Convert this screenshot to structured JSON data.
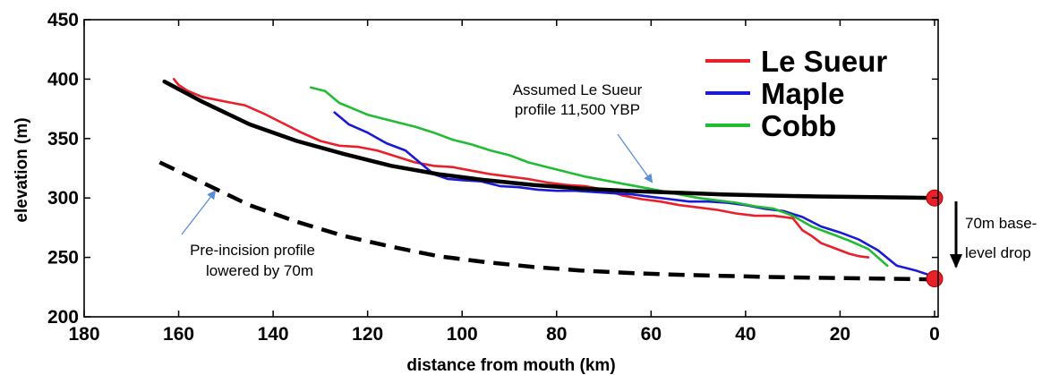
{
  "chart_data": {
    "type": "line",
    "xlabel": "distance from mouth (km)",
    "ylabel": "elevation (m)",
    "xlim": [
      180,
      0
    ],
    "ylim": [
      200,
      450
    ],
    "x_reversed": true,
    "xticks": [
      180,
      160,
      140,
      120,
      100,
      80,
      60,
      40,
      20,
      0
    ],
    "yticks": [
      200,
      250,
      300,
      350,
      400,
      450
    ],
    "grid": false,
    "legend_position": "top-right",
    "series": [
      {
        "name": "Le Sueur",
        "color": "#e8202a",
        "style": "solid",
        "x": [
          161,
          160,
          158,
          155,
          150,
          146,
          142,
          138,
          134,
          130,
          126,
          122,
          118,
          114,
          110,
          106,
          102,
          98,
          94,
          90,
          86,
          82,
          78,
          74,
          70,
          66,
          62,
          58,
          54,
          50,
          46,
          42,
          38,
          34,
          30,
          28,
          26,
          24,
          22,
          20,
          18,
          16,
          14
        ],
        "y": [
          400,
          395,
          390,
          385,
          381,
          378,
          371,
          363,
          355,
          348,
          344,
          343,
          340,
          335,
          330,
          327,
          326,
          323,
          320,
          318,
          316,
          313,
          311,
          310,
          307,
          302,
          299,
          297,
          294,
          292,
          290,
          287,
          285,
          285,
          283,
          273,
          268,
          262,
          259,
          256,
          253,
          251,
          250
        ]
      },
      {
        "name": "Maple",
        "color": "#1a1ad4",
        "style": "solid",
        "x": [
          127,
          124,
          120,
          116,
          112,
          109,
          106,
          103,
          100,
          96,
          92,
          88,
          84,
          80,
          76,
          72,
          68,
          64,
          60,
          56,
          52,
          48,
          44,
          40,
          36,
          32,
          28,
          24,
          20,
          16,
          12,
          8,
          4,
          1
        ],
        "y": [
          372,
          362,
          355,
          346,
          340,
          330,
          320,
          316,
          315,
          314,
          310,
          309,
          307,
          306,
          306,
          305,
          304,
          303,
          301,
          299,
          297,
          297,
          296,
          294,
          291,
          289,
          284,
          276,
          271,
          265,
          256,
          243,
          239,
          235
        ]
      },
      {
        "name": "Cobb",
        "color": "#22bb33",
        "style": "solid",
        "x": [
          132,
          129,
          126,
          123,
          120,
          117,
          114,
          110,
          106,
          102,
          98,
          94,
          90,
          86,
          82,
          78,
          74,
          70,
          66,
          62,
          58,
          54,
          50,
          46,
          42,
          38,
          34,
          30,
          26,
          22,
          18,
          14,
          10
        ],
        "y": [
          393,
          390,
          380,
          375,
          370,
          367,
          364,
          360,
          355,
          349,
          345,
          340,
          336,
          330,
          326,
          322,
          318,
          315,
          312,
          309,
          306,
          303,
          300,
          298,
          296,
          293,
          291,
          285,
          276,
          270,
          264,
          257,
          243
        ]
      },
      {
        "name": "",
        "color": "#000000",
        "style": "solid",
        "x": [
          163,
          155,
          145,
          135,
          125,
          115,
          105,
          95,
          85,
          75,
          65,
          55,
          45,
          35,
          25,
          15,
          5,
          0
        ],
        "y": [
          398,
          381,
          362,
          348,
          337,
          327,
          320,
          315,
          311,
          308,
          306,
          304.5,
          303,
          302,
          301.3,
          300.8,
          300.3,
          300
        ]
      },
      {
        "name": "",
        "color": "#000000",
        "style": "dashed",
        "x": [
          164,
          155,
          145,
          135,
          125,
          115,
          105,
          95,
          85,
          75,
          65,
          55,
          45,
          35,
          25,
          15,
          5,
          0
        ],
        "y": [
          330,
          313,
          294,
          280,
          268,
          259,
          251,
          246,
          242,
          239,
          237,
          235.5,
          234.5,
          233.5,
          232.8,
          232.3,
          231.8,
          231.5
        ]
      }
    ],
    "markers": [
      {
        "x": 0,
        "y": 300,
        "color": "#e8202a"
      },
      {
        "x": 0,
        "y": 232,
        "color": "#e8202a"
      }
    ],
    "annotations": [
      {
        "lines": [
          "Assumed Le Sueur",
          "profile 11,500 YBP"
        ]
      },
      {
        "lines": [
          "Pre-incision profile",
          "lowered by 70m"
        ]
      },
      {
        "lines": [
          "70m base-",
          "level drop"
        ]
      }
    ]
  }
}
